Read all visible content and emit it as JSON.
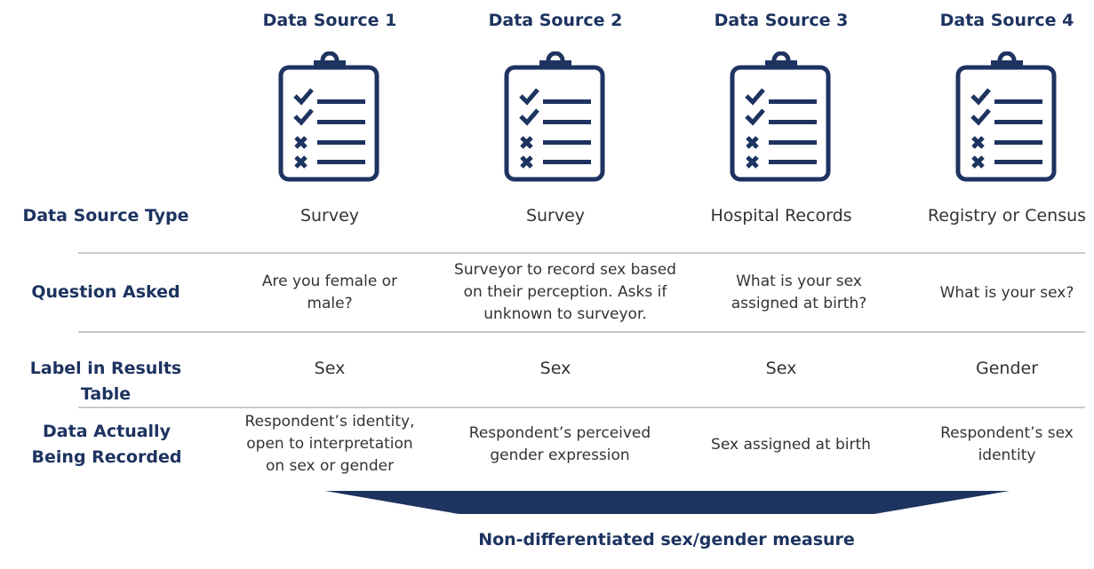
{
  "columns": [
    {
      "title": "Data Source 1",
      "type": "Survey",
      "question": "Are you female or male?",
      "label": "Sex",
      "recorded": "Respondent’s identity, open to interpretation on sex or gender"
    },
    {
      "title": "Data Source 2",
      "type": "Survey",
      "question": "Surveyor to record sex based on their perception. Asks if unknown to surveyor.",
      "label": "Sex",
      "recorded": "Respondent’s perceived gender expression"
    },
    {
      "title": "Data Source 3",
      "type": "Hospital Records",
      "question": "What is your sex assigned at birth?",
      "label": "Sex",
      "recorded": "Sex assigned at birth"
    },
    {
      "title": "Data Source 4",
      "type": "Registry or Census",
      "question": "What is your sex?",
      "label": "Gender",
      "recorded": "Respondent’s sex identity"
    }
  ],
  "row_labels": {
    "type": "Data Source Type",
    "question": "Question Asked",
    "label": "Label in Results Table",
    "recorded": "Data Actually Being Recorded"
  },
  "bottom_label": "Non-differentiated sex/gender measure",
  "icon": "clipboard-checklist-icon",
  "colors": {
    "navy": "#1d3360",
    "divider": "#c9c9c9",
    "text": "#333333"
  }
}
